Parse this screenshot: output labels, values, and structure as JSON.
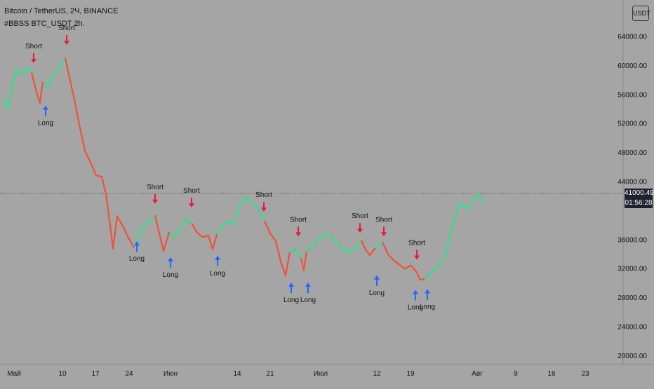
{
  "header": {
    "title": "Bitcoin / TetherUS, 2Ч, BINANCE",
    "indicator": "#BBSS BTC_USDT 2h."
  },
  "currency_label": "USDT",
  "price_label": "41000.49",
  "countdown_label": "01:56:28",
  "colors": {
    "background": "#a5a5a5",
    "up": "#2ee08a",
    "down": "#f0503c",
    "short_arrow": "#e8193c",
    "long_arrow": "#2962ff",
    "price_box": "#1e222d"
  },
  "chart_data": {
    "type": "line",
    "title": "Bitcoin / TetherUS, 2Ч, BINANCE",
    "xlabel": "",
    "ylabel": "",
    "ylim": [
      18200,
      66500
    ],
    "y_ticks": [
      "64000.00",
      "60000.00",
      "56000.00",
      "52000.00",
      "48000.00",
      "44000.00",
      "36000.00",
      "32000.00",
      "28000.00",
      "24000.00",
      "20000.00"
    ],
    "x_ticks": [
      "Май",
      "10",
      "17",
      "24",
      "Июн",
      "14",
      "21",
      "Июл",
      "12",
      "19",
      "Авг",
      "9",
      "16",
      "23"
    ],
    "current_price": 41000.49,
    "series": [
      {
        "color_key": "up",
        "segments": [
          [
            [
              0,
              55200
            ],
            [
              6,
              54000
            ],
            [
              12,
              56800
            ],
            [
              18,
              59500
            ],
            [
              26,
              58600
            ],
            [
              34,
              59800
            ],
            [
              40,
              59000
            ]
          ],
          [
            [
              56,
              57700
            ],
            [
              64,
              56900
            ],
            [
              72,
              58900
            ],
            [
              80,
              59700
            ],
            [
              88,
              61000
            ]
          ],
          [
            [
              186,
              34800
            ],
            [
              194,
              36800
            ],
            [
              202,
              38100
            ],
            [
              210,
              38500
            ],
            [
              216,
              39300
            ]
          ],
          [
            [
              236,
              37000
            ],
            [
              244,
              36300
            ],
            [
              252,
              37600
            ],
            [
              260,
              38800
            ],
            [
              268,
              38200
            ]
          ],
          [
            [
              304,
              36700
            ],
            [
              312,
              37900
            ],
            [
              320,
              38400
            ],
            [
              328,
              38000
            ],
            [
              336,
              40500
            ],
            [
              344,
              41800
            ],
            [
              352,
              41200
            ],
            [
              360,
              40600
            ],
            [
              368,
              39400
            ],
            [
              372,
              38500
            ]
          ],
          [
            [
              408,
              34200
            ],
            [
              416,
              34700
            ],
            [
              424,
              33400
            ]
          ],
          [
            [
              432,
              34300
            ],
            [
              442,
              35300
            ],
            [
              452,
              36300
            ],
            [
              462,
              36700
            ],
            [
              472,
              35800
            ],
            [
              482,
              34800
            ],
            [
              492,
              34100
            ],
            [
              502,
              34800
            ],
            [
              510,
              35800
            ]
          ],
          [
            [
              530,
              34800
            ],
            [
              540,
              35600
            ]
          ],
          [
            [
              600,
              30500
            ],
            [
              610,
              31500
            ],
            [
              620,
              32200
            ],
            [
              630,
              33900
            ],
            [
              640,
              37900
            ],
            [
              650,
              41000
            ],
            [
              660,
              40200
            ],
            [
              668,
              41300
            ],
            [
              676,
              42200
            ],
            [
              684,
              41000
            ]
          ]
        ]
      },
      {
        "color_key": "down",
        "segments": [
          [
            [
              40,
              59000
            ],
            [
              46,
              56600
            ],
            [
              52,
              54800
            ],
            [
              56,
              57700
            ]
          ],
          [
            [
              88,
              61000
            ],
            [
              96,
              57400
            ],
            [
              102,
              54800
            ],
            [
              108,
              51800
            ],
            [
              116,
              48200
            ],
            [
              124,
              46600
            ],
            [
              132,
              44800
            ],
            [
              140,
              44600
            ],
            [
              146,
              42200
            ],
            [
              152,
              37900
            ],
            [
              156,
              34700
            ],
            [
              162,
              39200
            ],
            [
              170,
              37800
            ],
            [
              178,
              36200
            ],
            [
              186,
              34800
            ]
          ],
          [
            [
              216,
              39300
            ],
            [
              222,
              36800
            ],
            [
              228,
              34400
            ],
            [
              236,
              37000
            ]
          ],
          [
            [
              268,
              38200
            ],
            [
              276,
              36900
            ],
            [
              284,
              36300
            ],
            [
              292,
              36500
            ],
            [
              298,
              34600
            ],
            [
              304,
              36700
            ]
          ],
          [
            [
              372,
              38500
            ],
            [
              380,
              36800
            ],
            [
              388,
              35700
            ],
            [
              396,
              32600
            ],
            [
              402,
              31000
            ],
            [
              408,
              34200
            ]
          ],
          [
            [
              424,
              33400
            ],
            [
              428,
              31700
            ],
            [
              432,
              34300
            ]
          ],
          [
            [
              510,
              35800
            ],
            [
              516,
              34600
            ],
            [
              522,
              33800
            ],
            [
              530,
              34800
            ]
          ],
          [
            [
              540,
              35600
            ],
            [
              548,
              33900
            ],
            [
              556,
              33100
            ],
            [
              564,
              32500
            ],
            [
              572,
              31900
            ],
            [
              580,
              32400
            ],
            [
              588,
              31600
            ],
            [
              594,
              30400
            ],
            [
              600,
              30500
            ]
          ]
        ]
      }
    ],
    "signals": [
      {
        "type": "short",
        "label": "Short",
        "x": 43,
        "price": 59700
      },
      {
        "type": "short",
        "label": "Short",
        "x": 90,
        "price": 62200
      },
      {
        "type": "short",
        "label": "Short",
        "x": 216,
        "price": 40300
      },
      {
        "type": "short",
        "label": "Short",
        "x": 268,
        "price": 39800
      },
      {
        "type": "short",
        "label": "Short",
        "x": 371,
        "price": 39200
      },
      {
        "type": "short",
        "label": "Short",
        "x": 420,
        "price": 35800
      },
      {
        "type": "short",
        "label": "Short",
        "x": 508,
        "price": 36300
      },
      {
        "type": "short",
        "label": "Short",
        "x": 542,
        "price": 35800
      },
      {
        "type": "short",
        "label": "Short",
        "x": 589,
        "price": 32600
      },
      {
        "type": "long",
        "label": "Long",
        "x": 60,
        "price": 55000
      },
      {
        "type": "long",
        "label": "Long",
        "x": 190,
        "price": 36300
      },
      {
        "type": "long",
        "label": "Long",
        "x": 238,
        "price": 34100
      },
      {
        "type": "long",
        "label": "Long",
        "x": 305,
        "price": 34300
      },
      {
        "type": "long",
        "label": "Long",
        "x": 410,
        "price": 30600
      },
      {
        "type": "long",
        "label": "Long",
        "x": 434,
        "price": 30600
      },
      {
        "type": "long",
        "label": "Long",
        "x": 532,
        "price": 31600
      },
      {
        "type": "long",
        "label": "Long",
        "x": 587,
        "price": 29600
      },
      {
        "type": "long",
        "label": "Long",
        "x": 604,
        "price": 29700
      }
    ]
  }
}
